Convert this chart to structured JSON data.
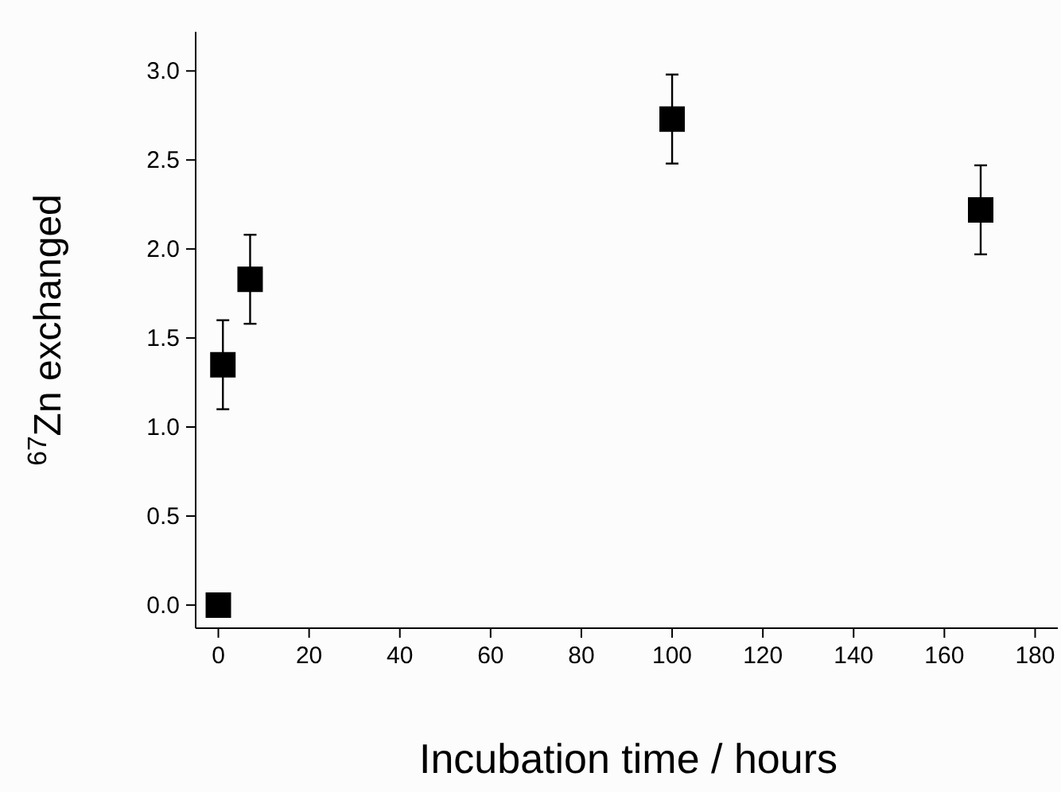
{
  "chart_data": {
    "type": "scatter",
    "xlabel": "Incubation time / hours",
    "ylabel": "$^{67}$Zn exchanged",
    "x": [
      0,
      1,
      7,
      100,
      168
    ],
    "values": [
      0,
      1.35,
      1.83,
      2.73,
      2.22
    ],
    "errors": [
      null,
      0.25,
      0.25,
      0.25,
      0.25
    ],
    "color": "#000000",
    "marker": "square",
    "xlim": [
      -5,
      185
    ],
    "xticks": [
      0,
      20,
      40,
      60,
      80,
      100,
      120,
      140,
      160,
      180
    ],
    "ylim": [
      -0.13,
      3.22
    ],
    "yticks": [
      {
        "value": 0,
        "label": "0.0"
      },
      0.5,
      {
        "value": 1,
        "label": "1.0"
      },
      1.5,
      {
        "value": 2,
        "label": "2.0"
      },
      2.5,
      {
        "value": 3,
        "label": "3.0"
      }
    ]
  }
}
